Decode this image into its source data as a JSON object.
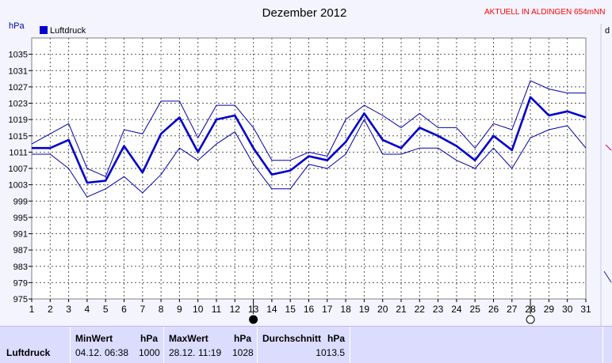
{
  "header": {
    "title": "Dezember 2012",
    "live_link": "AKTUELL IN ALDINGEN 654mNN",
    "unit_label": "hPa",
    "edge_fragment": "d"
  },
  "colors": {
    "background": "#f4f4ff",
    "plot_background": "#ffffff",
    "series_main": "#0000cc",
    "series_band": "#0000aa",
    "link": "#ff0000",
    "grid": "#555555"
  },
  "chart_data": {
    "type": "line",
    "title": "Dezember 2012",
    "ylabel": "hPa",
    "x": [
      1,
      2,
      3,
      4,
      5,
      6,
      7,
      8,
      9,
      10,
      11,
      12,
      13,
      14,
      15,
      16,
      17,
      18,
      19,
      20,
      21,
      22,
      23,
      24,
      25,
      26,
      27,
      28,
      29,
      30,
      31
    ],
    "xlim": [
      1,
      31
    ],
    "ylim": [
      975,
      1039
    ],
    "yticks": [
      975,
      979,
      983,
      987,
      991,
      995,
      999,
      1003,
      1007,
      1011,
      1015,
      1019,
      1023,
      1027,
      1031,
      1035
    ],
    "grid": true,
    "legend": "top-left",
    "series": [
      {
        "name": "Luftdruck",
        "role": "mean",
        "values": [
          1012,
          1012,
          1014,
          1003.5,
          1004,
          1012.5,
          1006,
          1015.5,
          1019.5,
          1011,
          1019,
          1020,
          1012,
          1005.5,
          1006.5,
          1010,
          1009,
          1013.5,
          1020.5,
          1014,
          1012,
          1017,
          1015,
          1012.5,
          1009,
          1015,
          1011.5,
          1024.5,
          1020,
          1021,
          1019.5
        ]
      },
      {
        "role": "max",
        "values": [
          1013,
          1015.5,
          1018,
          1007,
          1005,
          1016.5,
          1015.5,
          1023.5,
          1023.5,
          1014.5,
          1022.5,
          1022.5,
          1017,
          1009,
          1009,
          1011,
          1010,
          1019,
          1022.5,
          1020,
          1017,
          1020.5,
          1017,
          1017,
          1012,
          1018,
          1016.5,
          1028.5,
          1026.5,
          1025.5,
          1025.5
        ]
      },
      {
        "role": "min",
        "values": [
          1010.5,
          1010.5,
          1007,
          1000,
          1002,
          1005,
          1001,
          1005.5,
          1012,
          1009,
          1013,
          1016,
          1008,
          1002,
          1002,
          1008,
          1007,
          1010.5,
          1019,
          1010.5,
          1010.5,
          1012,
          1012,
          1009,
          1007,
          1012,
          1007,
          1014.5,
          1016.5,
          1017.5,
          1012
        ]
      }
    ],
    "markers": [
      {
        "day": 13,
        "symbol": "new-moon"
      },
      {
        "day": 28,
        "symbol": "full-moon"
      }
    ]
  },
  "stats": {
    "row_label": "Luftdruck",
    "min": {
      "label": "MinWert",
      "unit": "hPa",
      "date": "04.12.",
      "time": "06:38",
      "value": "1000"
    },
    "max": {
      "label": "MaxWert",
      "unit": "hPa",
      "date": "28.12.",
      "time": "11:19",
      "value": "1028"
    },
    "avg": {
      "label": "Durchschnitt",
      "unit": "hPa",
      "value": "1013.5"
    }
  }
}
